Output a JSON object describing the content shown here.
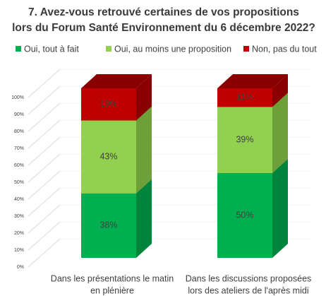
{
  "chart_data": {
    "type": "bar3d_stacked",
    "title": [
      "7. Avez-vous retrouvé certaines de vos propositions",
      "lors du Forum Santé Environnement du 6 décembre 2022?"
    ],
    "categories": [
      [
        "Dans les présentations le matin",
        "en plénière"
      ],
      [
        "Dans les discussions proposées",
        "lors des ateliers de l'après midi"
      ]
    ],
    "series": [
      {
        "name": "Oui, tout à fait",
        "color": "#00b050",
        "side_color": "#00843c",
        "values": [
          38,
          50
        ],
        "value_labels": [
          "38%",
          "50%"
        ]
      },
      {
        "name": "Oui, au moins une proposition",
        "color": "#92d050",
        "side_color": "#6ea03a",
        "values": [
          43,
          39
        ],
        "value_labels": [
          "43%",
          "39%"
        ]
      },
      {
        "name": "Non, pas du tout",
        "color": "#c00000",
        "side_color": "#8a0000",
        "values": [
          19,
          11
        ],
        "value_labels": [
          "19%",
          "11%"
        ]
      }
    ],
    "ylim": [
      0,
      100
    ],
    "yticks": [
      {
        "value": 0,
        "label": "0%"
      },
      {
        "value": 10,
        "label": "10%"
      },
      {
        "value": 20,
        "label": "20%"
      },
      {
        "value": 30,
        "label": "30%"
      },
      {
        "value": 40,
        "label": "40%"
      },
      {
        "value": 50,
        "label": "50%"
      },
      {
        "value": 60,
        "label": "60%"
      },
      {
        "value": 70,
        "label": "70%"
      },
      {
        "value": 80,
        "label": "80%"
      },
      {
        "value": 90,
        "label": "90%"
      },
      {
        "value": 100,
        "label": "100%"
      }
    ],
    "grid": true
  }
}
